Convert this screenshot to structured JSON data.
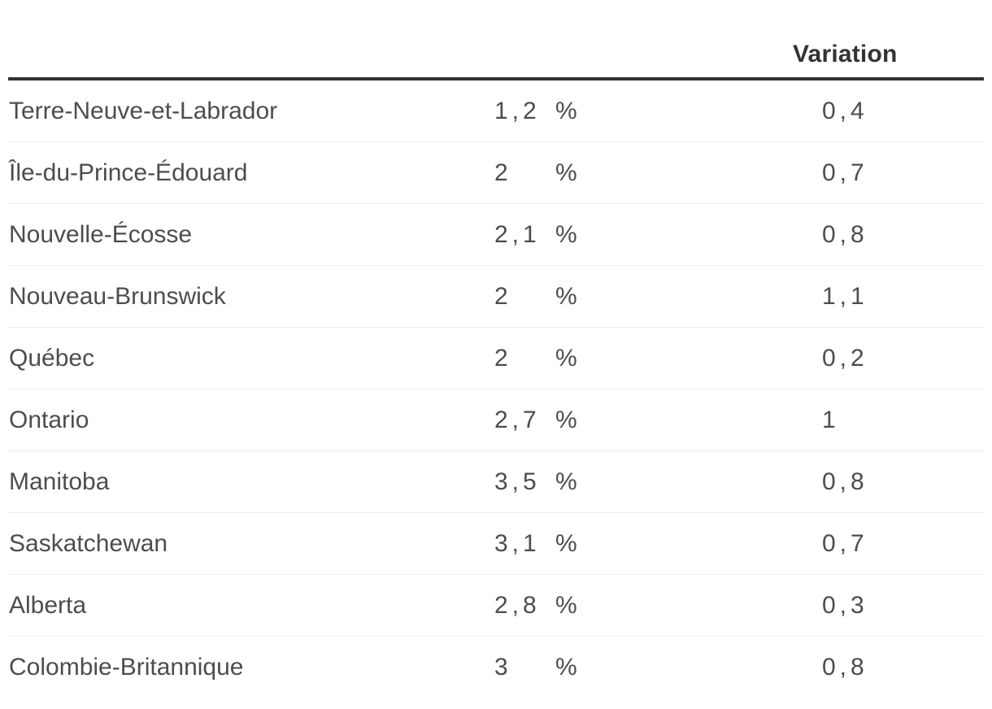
{
  "colors": {
    "header_text": "#333333",
    "header_rule": "#323232",
    "body_text": "#4d4d4d",
    "row_separator": "#ececec",
    "background": "#ffffff"
  },
  "table": {
    "header": {
      "variation_label": "Variation"
    },
    "rows": [
      {
        "label": "Terre-Neuve-et-Labrador",
        "value": "1,2",
        "unit": "%",
        "variation": "0,4"
      },
      {
        "label": "Île-du-Prince-Édouard",
        "value": "2",
        "unit": "%",
        "variation": "0,7"
      },
      {
        "label": "Nouvelle-Écosse",
        "value": "2,1",
        "unit": "%",
        "variation": "0,8"
      },
      {
        "label": "Nouveau-Brunswick",
        "value": "2",
        "unit": "%",
        "variation": "1,1"
      },
      {
        "label": "Québec",
        "value": "2",
        "unit": "%",
        "variation": "0,2"
      },
      {
        "label": "Ontario",
        "value": "2,7",
        "unit": "%",
        "variation": "1"
      },
      {
        "label": "Manitoba",
        "value": "3,5",
        "unit": "%",
        "variation": "0,8"
      },
      {
        "label": "Saskatchewan",
        "value": "3,1",
        "unit": "%",
        "variation": "0,7"
      },
      {
        "label": "Alberta",
        "value": "2,8",
        "unit": "%",
        "variation": "0,3"
      },
      {
        "label": "Colombie-Britannique",
        "value": "3",
        "unit": "%",
        "variation": "0,8"
      }
    ]
  },
  "chart_data": {
    "type": "table",
    "title": "",
    "columns": [
      "",
      "",
      "",
      "Variation"
    ],
    "decimal_separator": ",",
    "rows": [
      {
        "label": "Terre-Neuve-et-Labrador",
        "value_pct": 1.2,
        "variation": 0.4
      },
      {
        "label": "Île-du-Prince-Édouard",
        "value_pct": 2,
        "variation": 0.7
      },
      {
        "label": "Nouvelle-Écosse",
        "value_pct": 2.1,
        "variation": 0.8
      },
      {
        "label": "Nouveau-Brunswick",
        "value_pct": 2,
        "variation": 1.1
      },
      {
        "label": "Québec",
        "value_pct": 2,
        "variation": 0.2
      },
      {
        "label": "Ontario",
        "value_pct": 2.7,
        "variation": 1
      },
      {
        "label": "Manitoba",
        "value_pct": 3.5,
        "variation": 0.8
      },
      {
        "label": "Saskatchewan",
        "value_pct": 3.1,
        "variation": 0.7
      },
      {
        "label": "Alberta",
        "value_pct": 2.8,
        "variation": 0.3
      },
      {
        "label": "Colombie-Britannique",
        "value_pct": 3,
        "variation": 0.8
      }
    ]
  }
}
